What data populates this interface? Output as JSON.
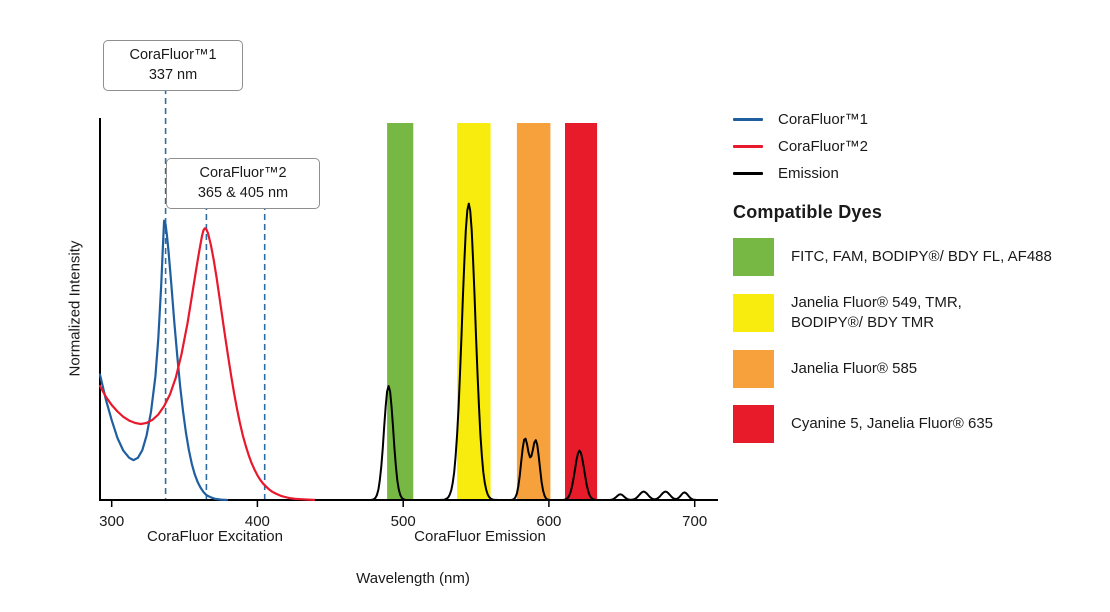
{
  "chart_data": {
    "type": "line",
    "xlabel": "Wavelength (nm)",
    "ylabel": "Normalized Intensity",
    "x_ticks": [
      300,
      400,
      500,
      600,
      700
    ],
    "x_range_nm": [
      292,
      716
    ],
    "ylim": [
      0,
      1
    ],
    "x_section_labels": [
      "CoraFluor Excitation",
      "CoraFluor Emission"
    ],
    "dashed_line_color": "#2e6da4",
    "annotations": [
      {
        "line1": "CoraFluor™1",
        "line2": "337 nm",
        "wavelengths_nm": [
          337
        ]
      },
      {
        "line1": "CoraFluor™2",
        "line2": "365 & 405 nm",
        "wavelengths_nm": [
          365,
          405
        ]
      }
    ],
    "legend": [
      {
        "label": "CoraFluor™1",
        "color": "#1f5f9f",
        "style": "line"
      },
      {
        "label": "CoraFluor™2",
        "color": "#e8192d",
        "style": "line"
      },
      {
        "label": "Emission",
        "color": "#000000",
        "style": "line"
      }
    ],
    "series": [
      {
        "name": "CoraFluor™1 excitation",
        "color": "#1f5f9f",
        "points": [
          [
            292,
            0.33
          ],
          [
            296,
            0.265
          ],
          [
            300,
            0.21
          ],
          [
            304,
            0.163
          ],
          [
            308,
            0.13
          ],
          [
            312,
            0.111
          ],
          [
            315,
            0.105
          ],
          [
            318,
            0.111
          ],
          [
            321,
            0.131
          ],
          [
            324,
            0.17
          ],
          [
            327,
            0.232
          ],
          [
            330,
            0.325
          ],
          [
            332,
            0.425
          ],
          [
            334,
            0.565
          ],
          [
            335,
            0.655
          ],
          [
            336,
            0.735
          ],
          [
            337,
            0.725
          ],
          [
            338,
            0.695
          ],
          [
            339,
            0.655
          ],
          [
            341,
            0.565
          ],
          [
            343,
            0.468
          ],
          [
            345,
            0.378
          ],
          [
            347,
            0.298
          ],
          [
            349,
            0.232
          ],
          [
            351,
            0.176
          ],
          [
            353,
            0.131
          ],
          [
            355,
            0.095
          ],
          [
            357,
            0.068
          ],
          [
            359,
            0.047
          ],
          [
            361,
            0.032
          ],
          [
            363,
            0.021
          ],
          [
            365,
            0.013
          ],
          [
            368,
            0.007
          ],
          [
            371,
            0.003
          ],
          [
            375,
            0.001
          ],
          [
            379,
            0
          ]
        ]
      },
      {
        "name": "CoraFluor™2 excitation",
        "color": "#e8192d",
        "points": [
          [
            292,
            0.3
          ],
          [
            296,
            0.272
          ],
          [
            300,
            0.25
          ],
          [
            304,
            0.233
          ],
          [
            308,
            0.219
          ],
          [
            312,
            0.209
          ],
          [
            316,
            0.203
          ],
          [
            320,
            0.2
          ],
          [
            324,
            0.203
          ],
          [
            328,
            0.211
          ],
          [
            332,
            0.225
          ],
          [
            336,
            0.247
          ],
          [
            340,
            0.278
          ],
          [
            344,
            0.322
          ],
          [
            348,
            0.385
          ],
          [
            352,
            0.465
          ],
          [
            355,
            0.535
          ],
          [
            358,
            0.607
          ],
          [
            360,
            0.653
          ],
          [
            362,
            0.695
          ],
          [
            363,
            0.71
          ],
          [
            364,
            0.715
          ],
          [
            365,
            0.712
          ],
          [
            366,
            0.703
          ],
          [
            368,
            0.672
          ],
          [
            370,
            0.632
          ],
          [
            372,
            0.585
          ],
          [
            374,
            0.533
          ],
          [
            376,
            0.48
          ],
          [
            378,
            0.427
          ],
          [
            380,
            0.375
          ],
          [
            382,
            0.326
          ],
          [
            384,
            0.281
          ],
          [
            386,
            0.24
          ],
          [
            388,
            0.203
          ],
          [
            390,
            0.17
          ],
          [
            392,
            0.142
          ],
          [
            394,
            0.118
          ],
          [
            396,
            0.097
          ],
          [
            398,
            0.08
          ],
          [
            400,
            0.065
          ],
          [
            402,
            0.053
          ],
          [
            404,
            0.043
          ],
          [
            406,
            0.035
          ],
          [
            408,
            0.028
          ],
          [
            410,
            0.022
          ],
          [
            413,
            0.016
          ],
          [
            416,
            0.011
          ],
          [
            419,
            0.008
          ],
          [
            422,
            0.005
          ],
          [
            426,
            0.003
          ],
          [
            430,
            0.002
          ],
          [
            435,
            0.001
          ],
          [
            440,
            0
          ]
        ]
      }
    ],
    "emission": {
      "name": "Emission",
      "color": "#000000",
      "range_nm": [
        440,
        714
      ],
      "peaks": [
        {
          "center_nm": 490,
          "height": 0.3,
          "sigma_nm": 3.2
        },
        {
          "center_nm": 545,
          "height": 0.78,
          "sigma_nm": 4.6
        },
        {
          "center_nm": 583.5,
          "height": 0.16,
          "sigma_nm": 2.6
        },
        {
          "center_nm": 591,
          "height": 0.155,
          "sigma_nm": 2.6
        },
        {
          "center_nm": 621,
          "height": 0.13,
          "sigma_nm": 3.2
        },
        {
          "center_nm": 649,
          "height": 0.015,
          "sigma_nm": 2.5
        },
        {
          "center_nm": 665,
          "height": 0.022,
          "sigma_nm": 3.0
        },
        {
          "center_nm": 680,
          "height": 0.022,
          "sigma_nm": 3.0
        },
        {
          "center_nm": 693,
          "height": 0.02,
          "sigma_nm": 2.5
        }
      ]
    },
    "filter_bands": [
      {
        "from_nm": 489,
        "to_nm": 507,
        "color": "#76b843"
      },
      {
        "from_nm": 537,
        "to_nm": 560,
        "color": "#f8ec0f"
      },
      {
        "from_nm": 578,
        "to_nm": 601,
        "color": "#f6a13c"
      },
      {
        "from_nm": 611,
        "to_nm": 633,
        "color": "#e81b2b"
      }
    ]
  },
  "compatible_dyes": {
    "heading": "Compatible Dyes",
    "items": [
      {
        "color": "#76b843",
        "line1": "FITC, FAM, BODIPY®/ BDY FL, AF488",
        "line2": ""
      },
      {
        "color": "#f8ec0f",
        "line1": "Janelia Fluor® 549, TMR,",
        "line2": "BODIPY®/ BDY TMR"
      },
      {
        "color": "#f6a13c",
        "line1": "Janelia Fluor® 585",
        "line2": ""
      },
      {
        "color": "#e81b2b",
        "line1": "Cyanine 5, Janelia Fluor® 635",
        "line2": ""
      }
    ]
  }
}
